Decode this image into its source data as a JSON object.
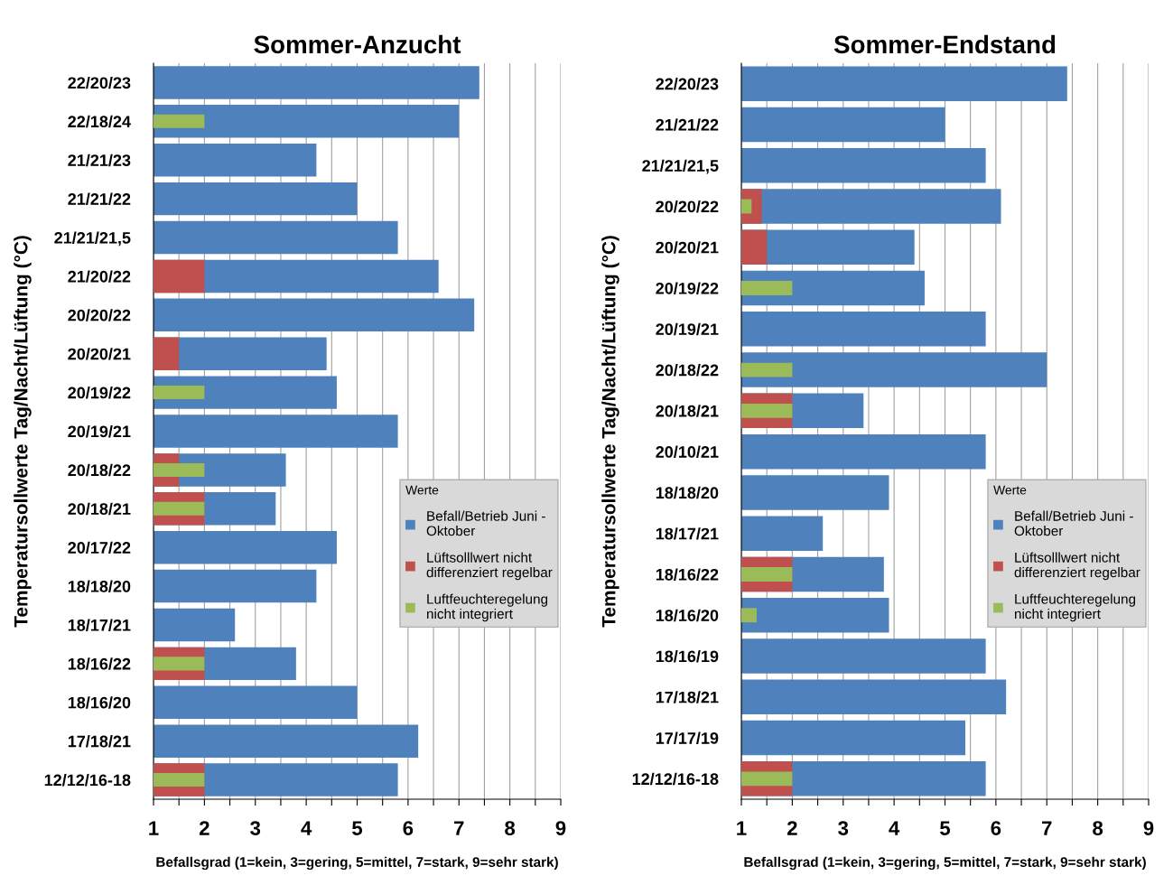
{
  "chart_data": [
    {
      "type": "bar",
      "orientation": "horizontal",
      "title": "Sommer-Anzucht",
      "ylabel": "Temperatursollwerte Tag/Nacht/Lüftung (°C)",
      "xlabel": "Befallsgrad (1=kein, 3=gering, 5=mittel, 7=stark, 9=sehr stark)",
      "categories": [
        "22/20/23",
        "22/18/24",
        "21/21/23",
        "21/21/22",
        "21/21/21,5",
        "21/20/22",
        "20/20/22",
        "20/20/21",
        "20/19/22",
        "20/19/21",
        "20/18/22",
        "20/18/21",
        "20/17/22",
        "18/18/20",
        "18/17/21",
        "18/16/22",
        "18/16/20",
        "17/18/21",
        "12/12/16-18"
      ],
      "series": [
        {
          "name": "Lüftsolllwert nicht\ndifferenziert regelbar",
          "color": "#c0504d",
          "values": [
            null,
            null,
            null,
            null,
            null,
            2.0,
            null,
            1.5,
            null,
            null,
            1.5,
            2.0,
            null,
            null,
            null,
            2.0,
            null,
            null,
            2.0
          ]
        },
        {
          "name": "Befall/Betrieb Juni -\nOktober",
          "color": "#4f81bd",
          "values": [
            7.4,
            7.0,
            4.2,
            5.0,
            5.8,
            6.6,
            7.3,
            4.4,
            4.6,
            5.8,
            3.6,
            3.4,
            4.6,
            4.2,
            2.6,
            3.8,
            5.0,
            6.2,
            5.8
          ]
        },
        {
          "name": "Luftfeuchteregelung\nnicht integriert",
          "color": "#9bbb59",
          "values": [
            null,
            2.0,
            null,
            null,
            null,
            null,
            null,
            null,
            2.0,
            null,
            2.0,
            2.0,
            null,
            null,
            null,
            2.0,
            null,
            null,
            2.0
          ]
        }
      ],
      "xlim": [
        1,
        9
      ],
      "xticks": [
        1,
        {
          "value": 1.5,
          "label": null
        },
        2,
        {
          "value": 2.5,
          "label": null
        },
        3,
        {
          "value": 3.5,
          "label": null
        },
        4,
        {
          "value": 4.5,
          "label": null
        },
        5,
        {
          "value": 5.5,
          "label": null
        },
        6,
        {
          "value": 6.5,
          "label": null
        },
        7,
        {
          "value": 7.5,
          "label": null
        },
        8,
        {
          "value": 8.5,
          "label": null
        },
        9
      ],
      "grid": "x",
      "legend": "right",
      "legend_title": "Werte"
    },
    {
      "type": "bar",
      "orientation": "horizontal",
      "title": "Sommer-Endstand",
      "ylabel": "Temperatursollwerte Tag/Nacht/Lüftung (°C)",
      "xlabel": "Befallsgrad (1=kein, 3=gering, 5=mittel, 7=stark, 9=sehr stark)",
      "categories": [
        "22/20/23",
        "21/21/22",
        "21/21/21,5",
        "20/20/22",
        "20/20/21",
        "20/19/22",
        "20/19/21",
        "20/18/22",
        "20/18/21",
        "20/10/21",
        "18/18/20",
        "18/17/21",
        "18/16/22",
        "18/16/20",
        "18/16/19",
        "17/18/21",
        "17/17/19",
        "12/12/16-18"
      ],
      "series": [
        {
          "name": "Lüftsolllwert nicht\ndifferenziert regelbar",
          "color": "#c0504d",
          "values": [
            null,
            null,
            null,
            1.4,
            1.5,
            null,
            null,
            null,
            2.0,
            null,
            null,
            null,
            2.0,
            null,
            null,
            null,
            null,
            2.0
          ]
        },
        {
          "name": "Befall/Betrieb Juni -\nOktober",
          "color": "#4f81bd",
          "values": [
            7.4,
            5.0,
            5.8,
            6.1,
            4.4,
            4.6,
            5.8,
            7.0,
            3.4,
            5.8,
            3.9,
            2.6,
            3.8,
            3.9,
            5.8,
            6.2,
            5.4,
            5.8
          ]
        },
        {
          "name": "Luftfeuchteregelung\nnicht integriert",
          "color": "#9bbb59",
          "values": [
            null,
            null,
            null,
            1.2,
            null,
            2.0,
            null,
            2.0,
            2.0,
            null,
            null,
            null,
            2.0,
            1.3,
            null,
            null,
            null,
            2.0
          ]
        }
      ],
      "xlim": [
        1,
        9
      ],
      "xticks": [
        1,
        {
          "value": 1.5,
          "label": null
        },
        2,
        {
          "value": 2.5,
          "label": null
        },
        3,
        {
          "value": 3.5,
          "label": null
        },
        4,
        {
          "value": 4.5,
          "label": null
        },
        5,
        {
          "value": 5.5,
          "label": null
        },
        6,
        {
          "value": 6.5,
          "label": null
        },
        7,
        {
          "value": 7.5,
          "label": null
        },
        8,
        {
          "value": 8.5,
          "label": null
        },
        9
      ],
      "grid": "x",
      "legend": "right",
      "legend_title": "Werte"
    }
  ]
}
